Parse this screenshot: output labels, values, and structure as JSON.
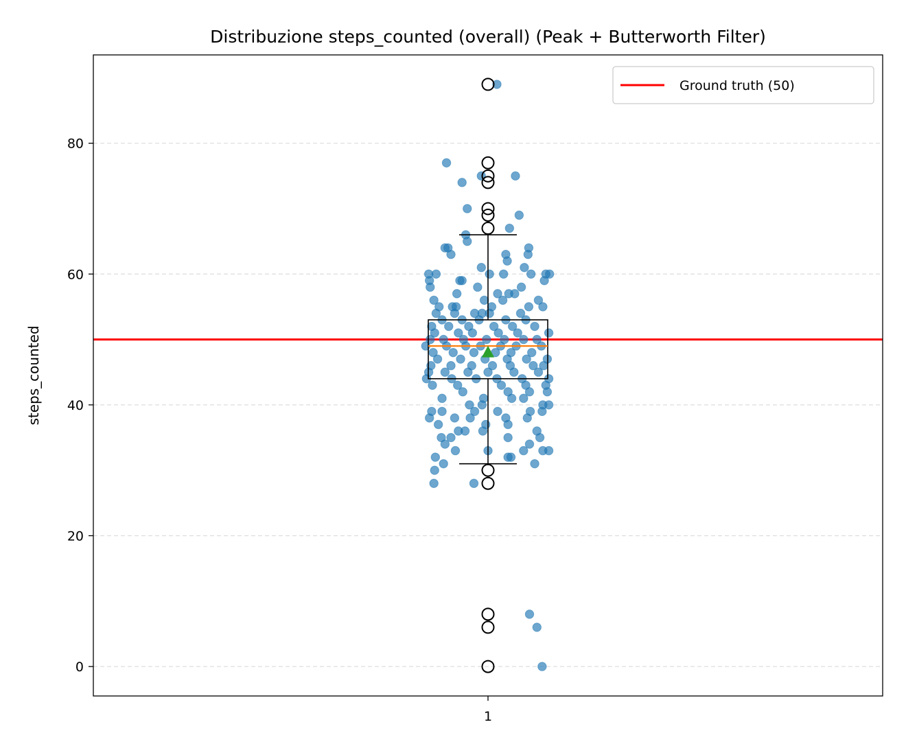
{
  "chart_data": {
    "type": "box-strip",
    "title": "Distribuzione steps_counted (overall) (Peak + Butterworth Filter)",
    "xlabel": "",
    "ylabel": "steps_counted",
    "categories": [
      "1"
    ],
    "ylim": [
      -4.5,
      93.5
    ],
    "yticks": [
      0,
      20,
      40,
      60,
      80
    ],
    "grid": {
      "y": true,
      "x": false
    },
    "legend": {
      "placement": "top-right",
      "entries": [
        {
          "label": "Ground truth (50)",
          "color": "#ff0000"
        }
      ]
    },
    "reference_line": {
      "y": 50,
      "color": "#ff0000",
      "label": "Ground truth (50)"
    },
    "box": {
      "q1": 44,
      "median": 49,
      "q3": 53,
      "mean": 48,
      "whisker_low": 31,
      "whisker_high": 66
    },
    "outliers": [
      89,
      77,
      75,
      74,
      70,
      69,
      67,
      30,
      28,
      8,
      6,
      0
    ],
    "points": [
      {
        "y": 89,
        "jitter": 0.12
      },
      {
        "y": 77,
        "jitter": -0.56
      },
      {
        "y": 75,
        "jitter": -0.09
      },
      {
        "y": 75,
        "jitter": 0.37
      },
      {
        "y": 74,
        "jitter": -0.35
      },
      {
        "y": 70,
        "jitter": -0.28
      },
      {
        "y": 69,
        "jitter": 0.42
      },
      {
        "y": 67,
        "jitter": 0.29
      },
      {
        "y": 66,
        "jitter": -0.3
      },
      {
        "y": 65,
        "jitter": -0.28
      },
      {
        "y": 64,
        "jitter": -0.58
      },
      {
        "y": 64,
        "jitter": -0.54
      },
      {
        "y": 64,
        "jitter": 0.55
      },
      {
        "y": 63,
        "jitter": -0.5
      },
      {
        "y": 63,
        "jitter": 0.24
      },
      {
        "y": 63,
        "jitter": 0.54
      },
      {
        "y": 62,
        "jitter": 0.26
      },
      {
        "y": 61,
        "jitter": -0.09
      },
      {
        "y": 61,
        "jitter": 0.49
      },
      {
        "y": 60,
        "jitter": -0.8
      },
      {
        "y": 60,
        "jitter": -0.7
      },
      {
        "y": 60,
        "jitter": 0.02
      },
      {
        "y": 60,
        "jitter": 0.21
      },
      {
        "y": 60,
        "jitter": 0.58
      },
      {
        "y": 60,
        "jitter": 0.83
      },
      {
        "y": 60,
        "jitter": 0.78
      },
      {
        "y": 59,
        "jitter": -0.79
      },
      {
        "y": 59,
        "jitter": -0.38
      },
      {
        "y": 59,
        "jitter": -0.35
      },
      {
        "y": 59,
        "jitter": 0.76
      },
      {
        "y": 58,
        "jitter": -0.78
      },
      {
        "y": 58,
        "jitter": -0.14
      },
      {
        "y": 58,
        "jitter": 0.45
      },
      {
        "y": 57,
        "jitter": -0.42
      },
      {
        "y": 57,
        "jitter": 0.13
      },
      {
        "y": 57,
        "jitter": 0.28
      },
      {
        "y": 57,
        "jitter": 0.36
      },
      {
        "y": 56,
        "jitter": -0.73
      },
      {
        "y": 56,
        "jitter": -0.05
      },
      {
        "y": 56,
        "jitter": 0.2
      },
      {
        "y": 56,
        "jitter": 0.68
      },
      {
        "y": 55,
        "jitter": -0.66
      },
      {
        "y": 55,
        "jitter": -0.48
      },
      {
        "y": 55,
        "jitter": -0.43
      },
      {
        "y": 55,
        "jitter": 0.05
      },
      {
        "y": 55,
        "jitter": 0.55
      },
      {
        "y": 55,
        "jitter": 0.74
      },
      {
        "y": 54,
        "jitter": -0.7
      },
      {
        "y": 54,
        "jitter": -0.45
      },
      {
        "y": 54,
        "jitter": -0.18
      },
      {
        "y": 54,
        "jitter": -0.08
      },
      {
        "y": 54,
        "jitter": 0.02
      },
      {
        "y": 54,
        "jitter": 0.44
      },
      {
        "y": 53,
        "jitter": -0.62
      },
      {
        "y": 53,
        "jitter": -0.35
      },
      {
        "y": 53,
        "jitter": -0.12
      },
      {
        "y": 53,
        "jitter": 0.24
      },
      {
        "y": 53,
        "jitter": 0.51
      },
      {
        "y": 52,
        "jitter": -0.76
      },
      {
        "y": 52,
        "jitter": -0.53
      },
      {
        "y": 52,
        "jitter": -0.26
      },
      {
        "y": 52,
        "jitter": 0.08
      },
      {
        "y": 52,
        "jitter": 0.33
      },
      {
        "y": 52,
        "jitter": 0.63
      },
      {
        "y": 51,
        "jitter": -0.72
      },
      {
        "y": 51,
        "jitter": -0.4
      },
      {
        "y": 51,
        "jitter": -0.21
      },
      {
        "y": 51,
        "jitter": 0.14
      },
      {
        "y": 51,
        "jitter": 0.4
      },
      {
        "y": 51,
        "jitter": 0.82
      },
      {
        "y": 50,
        "jitter": -0.78
      },
      {
        "y": 50,
        "jitter": -0.6
      },
      {
        "y": 50,
        "jitter": -0.33
      },
      {
        "y": 50,
        "jitter": -0.02
      },
      {
        "y": 50,
        "jitter": 0.22
      },
      {
        "y": 50,
        "jitter": 0.48
      },
      {
        "y": 50,
        "jitter": 0.66
      },
      {
        "y": 49,
        "jitter": -0.84
      },
      {
        "y": 49,
        "jitter": -0.56
      },
      {
        "y": 49,
        "jitter": -0.3
      },
      {
        "y": 49,
        "jitter": -0.1
      },
      {
        "y": 49,
        "jitter": 0.17
      },
      {
        "y": 49,
        "jitter": 0.38
      },
      {
        "y": 49,
        "jitter": 0.72
      },
      {
        "y": 48,
        "jitter": -0.74
      },
      {
        "y": 48,
        "jitter": -0.47
      },
      {
        "y": 48,
        "jitter": -0.19
      },
      {
        "y": 48,
        "jitter": 0.1
      },
      {
        "y": 48,
        "jitter": 0.31
      },
      {
        "y": 48,
        "jitter": 0.59
      },
      {
        "y": 47,
        "jitter": -0.68
      },
      {
        "y": 47,
        "jitter": -0.37
      },
      {
        "y": 47,
        "jitter": -0.04
      },
      {
        "y": 47,
        "jitter": 0.26
      },
      {
        "y": 47,
        "jitter": 0.52
      },
      {
        "y": 47,
        "jitter": 0.8
      },
      {
        "y": 46,
        "jitter": -0.77
      },
      {
        "y": 46,
        "jitter": -0.5
      },
      {
        "y": 46,
        "jitter": -0.22
      },
      {
        "y": 46,
        "jitter": 0.06
      },
      {
        "y": 46,
        "jitter": 0.3
      },
      {
        "y": 46,
        "jitter": 0.61
      },
      {
        "y": 46,
        "jitter": 0.75
      },
      {
        "y": 45,
        "jitter": -0.8
      },
      {
        "y": 45,
        "jitter": -0.58
      },
      {
        "y": 45,
        "jitter": -0.27
      },
      {
        "y": 45,
        "jitter": 0.0
      },
      {
        "y": 45,
        "jitter": 0.35
      },
      {
        "y": 45,
        "jitter": 0.68
      },
      {
        "y": 44,
        "jitter": -0.83
      },
      {
        "y": 44,
        "jitter": -0.49
      },
      {
        "y": 44,
        "jitter": -0.16
      },
      {
        "y": 44,
        "jitter": 0.12
      },
      {
        "y": 44,
        "jitter": 0.46
      },
      {
        "y": 44,
        "jitter": 0.82
      },
      {
        "y": 43,
        "jitter": -0.75
      },
      {
        "y": 43,
        "jitter": -0.41
      },
      {
        "y": 43,
        "jitter": 0.18
      },
      {
        "y": 43,
        "jitter": 0.51
      },
      {
        "y": 43,
        "jitter": 0.78
      },
      {
        "y": 42,
        "jitter": -0.34
      },
      {
        "y": 42,
        "jitter": 0.27
      },
      {
        "y": 42,
        "jitter": 0.56
      },
      {
        "y": 42,
        "jitter": 0.8
      },
      {
        "y": 41,
        "jitter": -0.62
      },
      {
        "y": 41,
        "jitter": -0.06
      },
      {
        "y": 41,
        "jitter": 0.32
      },
      {
        "y": 41,
        "jitter": 0.48
      },
      {
        "y": 40,
        "jitter": -0.25
      },
      {
        "y": 40,
        "jitter": -0.08
      },
      {
        "y": 40,
        "jitter": 0.74
      },
      {
        "y": 40,
        "jitter": 0.82
      },
      {
        "y": 39,
        "jitter": -0.76
      },
      {
        "y": 39,
        "jitter": -0.62
      },
      {
        "y": 39,
        "jitter": -0.18
      },
      {
        "y": 39,
        "jitter": 0.13
      },
      {
        "y": 39,
        "jitter": 0.57
      },
      {
        "y": 39,
        "jitter": 0.73
      },
      {
        "y": 38,
        "jitter": -0.79
      },
      {
        "y": 38,
        "jitter": -0.45
      },
      {
        "y": 38,
        "jitter": -0.24
      },
      {
        "y": 38,
        "jitter": 0.24
      },
      {
        "y": 38,
        "jitter": 0.53
      },
      {
        "y": 37,
        "jitter": -0.67
      },
      {
        "y": 37,
        "jitter": -0.03
      },
      {
        "y": 37,
        "jitter": 0.27
      },
      {
        "y": 36,
        "jitter": -0.4
      },
      {
        "y": 36,
        "jitter": -0.31
      },
      {
        "y": 36,
        "jitter": -0.07
      },
      {
        "y": 36,
        "jitter": 0.66
      },
      {
        "y": 35,
        "jitter": -0.63
      },
      {
        "y": 35,
        "jitter": -0.5
      },
      {
        "y": 35,
        "jitter": 0.27
      },
      {
        "y": 35,
        "jitter": 0.7
      },
      {
        "y": 34,
        "jitter": -0.58
      },
      {
        "y": 34,
        "jitter": 0.56
      },
      {
        "y": 33,
        "jitter": -0.44
      },
      {
        "y": 33,
        "jitter": 0.0
      },
      {
        "y": 33,
        "jitter": 0.48
      },
      {
        "y": 33,
        "jitter": 0.74
      },
      {
        "y": 33,
        "jitter": 0.82
      },
      {
        "y": 32,
        "jitter": -0.71
      },
      {
        "y": 32,
        "jitter": 0.27
      },
      {
        "y": 32,
        "jitter": 0.31
      },
      {
        "y": 31,
        "jitter": -0.6
      },
      {
        "y": 31,
        "jitter": 0.63
      },
      {
        "y": 30,
        "jitter": -0.72
      },
      {
        "y": 28,
        "jitter": -0.73
      },
      {
        "y": 28,
        "jitter": -0.19
      },
      {
        "y": 8,
        "jitter": 0.56
      },
      {
        "y": 6,
        "jitter": 0.66
      },
      {
        "y": 0,
        "jitter": 0.73
      }
    ]
  }
}
